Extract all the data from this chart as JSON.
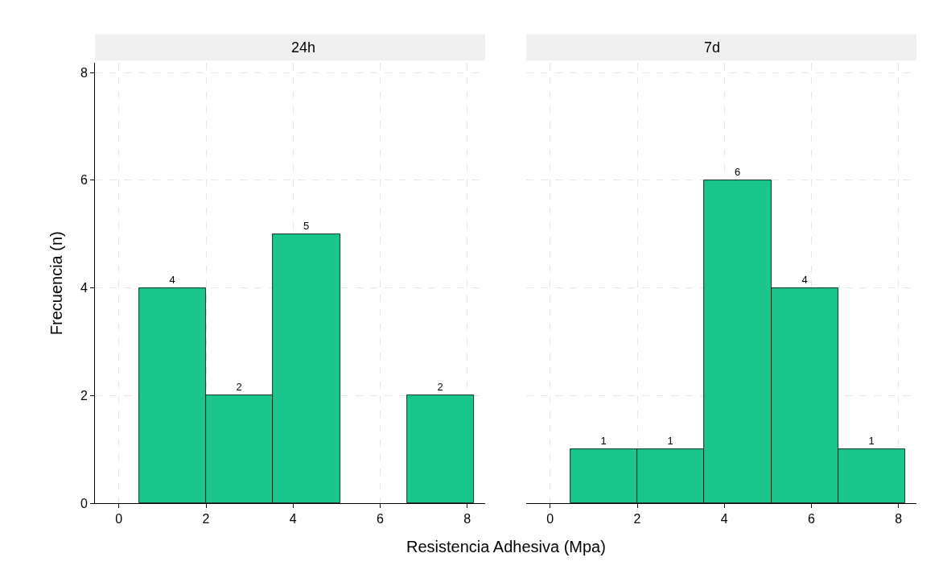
{
  "chart_data": [
    {
      "type": "histogram",
      "title": "24h",
      "xlabel": "Resistencia Adhesiva (Mpa)",
      "ylabel": "Frecuencia (n)",
      "bins": [
        0.46,
        2.0,
        3.54,
        5.08,
        6.62,
        8.16
      ],
      "values": [
        4,
        2,
        5,
        0,
        2
      ],
      "value_labels": [
        "4",
        "2",
        "5",
        null,
        "2"
      ],
      "color": "#1bc68d",
      "xlim": [
        -0.55,
        8.41
      ],
      "xticks": [
        0,
        2,
        4,
        6,
        8
      ],
      "ylim": [
        0,
        8.18
      ],
      "yticks": [
        0,
        2,
        4,
        6,
        8
      ],
      "grid": true
    },
    {
      "type": "histogram",
      "title": "7d",
      "bins": [
        0.46,
        2.0,
        3.54,
        5.08,
        6.62,
        8.16
      ],
      "values": [
        1,
        1,
        6,
        4,
        1
      ],
      "value_labels": [
        "1",
        "1",
        "6",
        "4",
        "1"
      ],
      "color": "#1bc68d",
      "xlim": [
        -0.55,
        8.41
      ],
      "xticks": [
        0,
        2,
        4,
        6,
        8
      ],
      "ylim": [
        0,
        8.18
      ],
      "yticks": [
        0,
        2,
        4,
        6,
        8
      ],
      "grid": true,
      "tick_labels": "x"
    }
  ]
}
